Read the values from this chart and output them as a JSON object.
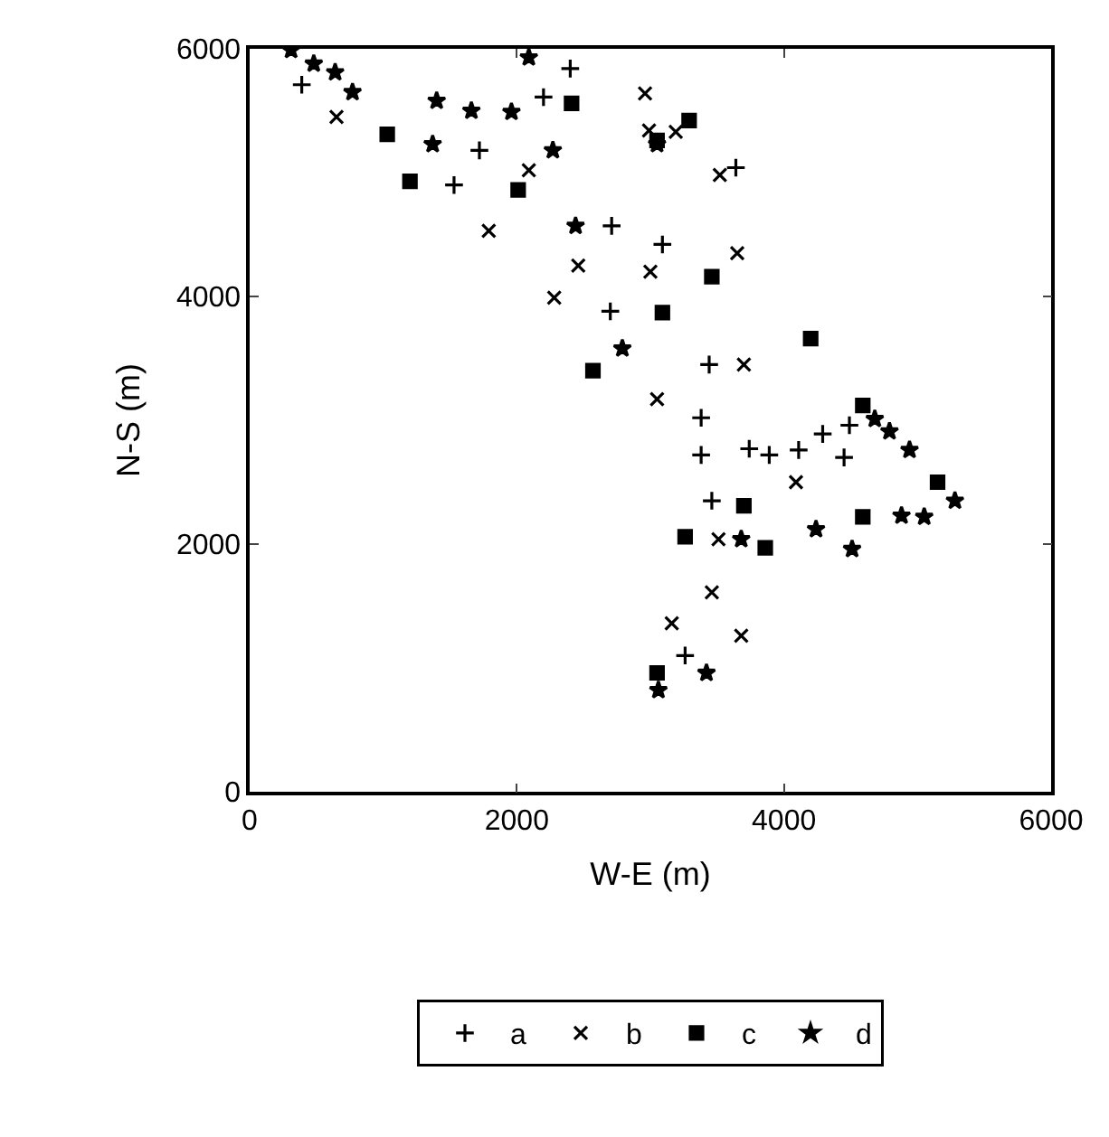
{
  "chart_data": {
    "type": "scatter",
    "xlabel": "W-E (m)",
    "ylabel": "N-S (m)",
    "xlim": [
      0,
      6000
    ],
    "ylim": [
      0,
      6000
    ],
    "xticks": [
      0,
      2000,
      4000,
      6000
    ],
    "yticks": [
      0,
      2000,
      4000,
      6000
    ],
    "legend": "bottom",
    "series": [
      {
        "name": "a",
        "color": "#000000",
        "marker": "cross",
        "x": [
          390,
          1530,
          1720,
          2200,
          2400,
          2710,
          2700,
          3090,
          3640,
          3440,
          3380,
          3380,
          3460,
          3740,
          3890,
          4110,
          4290,
          4490,
          4450,
          3260
        ],
        "values": [
          5710,
          4900,
          5180,
          5610,
          5840,
          4570,
          3880,
          4420,
          5040,
          3450,
          3020,
          2720,
          2350,
          2770,
          2720,
          2760,
          2890,
          2960,
          2700,
          1100
        ]
      },
      {
        "name": "b",
        "color": "#000000",
        "marker": "x",
        "x": [
          650,
          1790,
          2090,
          2280,
          2460,
          2960,
          2990,
          3190,
          3520,
          3650,
          3000,
          3700,
          3050,
          4090,
          3510,
          3460,
          3160,
          3680
        ],
        "values": [
          5450,
          4530,
          5020,
          3990,
          4250,
          5640,
          5340,
          5330,
          4980,
          4350,
          4200,
          3450,
          3170,
          2500,
          2040,
          1610,
          1360,
          1260
        ]
      },
      {
        "name": "c",
        "color": "#000000",
        "marker": "square",
        "x": [
          1030,
          1200,
          2010,
          2410,
          3050,
          3290,
          3460,
          3090,
          2570,
          4200,
          4590,
          3700,
          3260,
          3860,
          4590,
          5150,
          3050
        ],
        "values": [
          5310,
          4930,
          4860,
          5560,
          5260,
          5420,
          4160,
          3870,
          3400,
          3660,
          3120,
          2310,
          2060,
          1970,
          2220,
          2500,
          960
        ]
      },
      {
        "name": "d",
        "color": "#000000",
        "marker": "star",
        "x": [
          310,
          480,
          640,
          770,
          1400,
          1660,
          1960,
          1370,
          2090,
          2270,
          2440,
          2790,
          3050,
          4680,
          4790,
          4940,
          5050,
          5280,
          4880,
          3680,
          4240,
          4510,
          3060,
          3420
        ],
        "values": [
          5990,
          5880,
          5810,
          5650,
          5580,
          5500,
          5490,
          5230,
          5930,
          5180,
          4570,
          3580,
          5230,
          3010,
          2910,
          2760,
          2220,
          2350,
          2230,
          2040,
          2120,
          1960,
          820,
          960
        ]
      }
    ]
  }
}
